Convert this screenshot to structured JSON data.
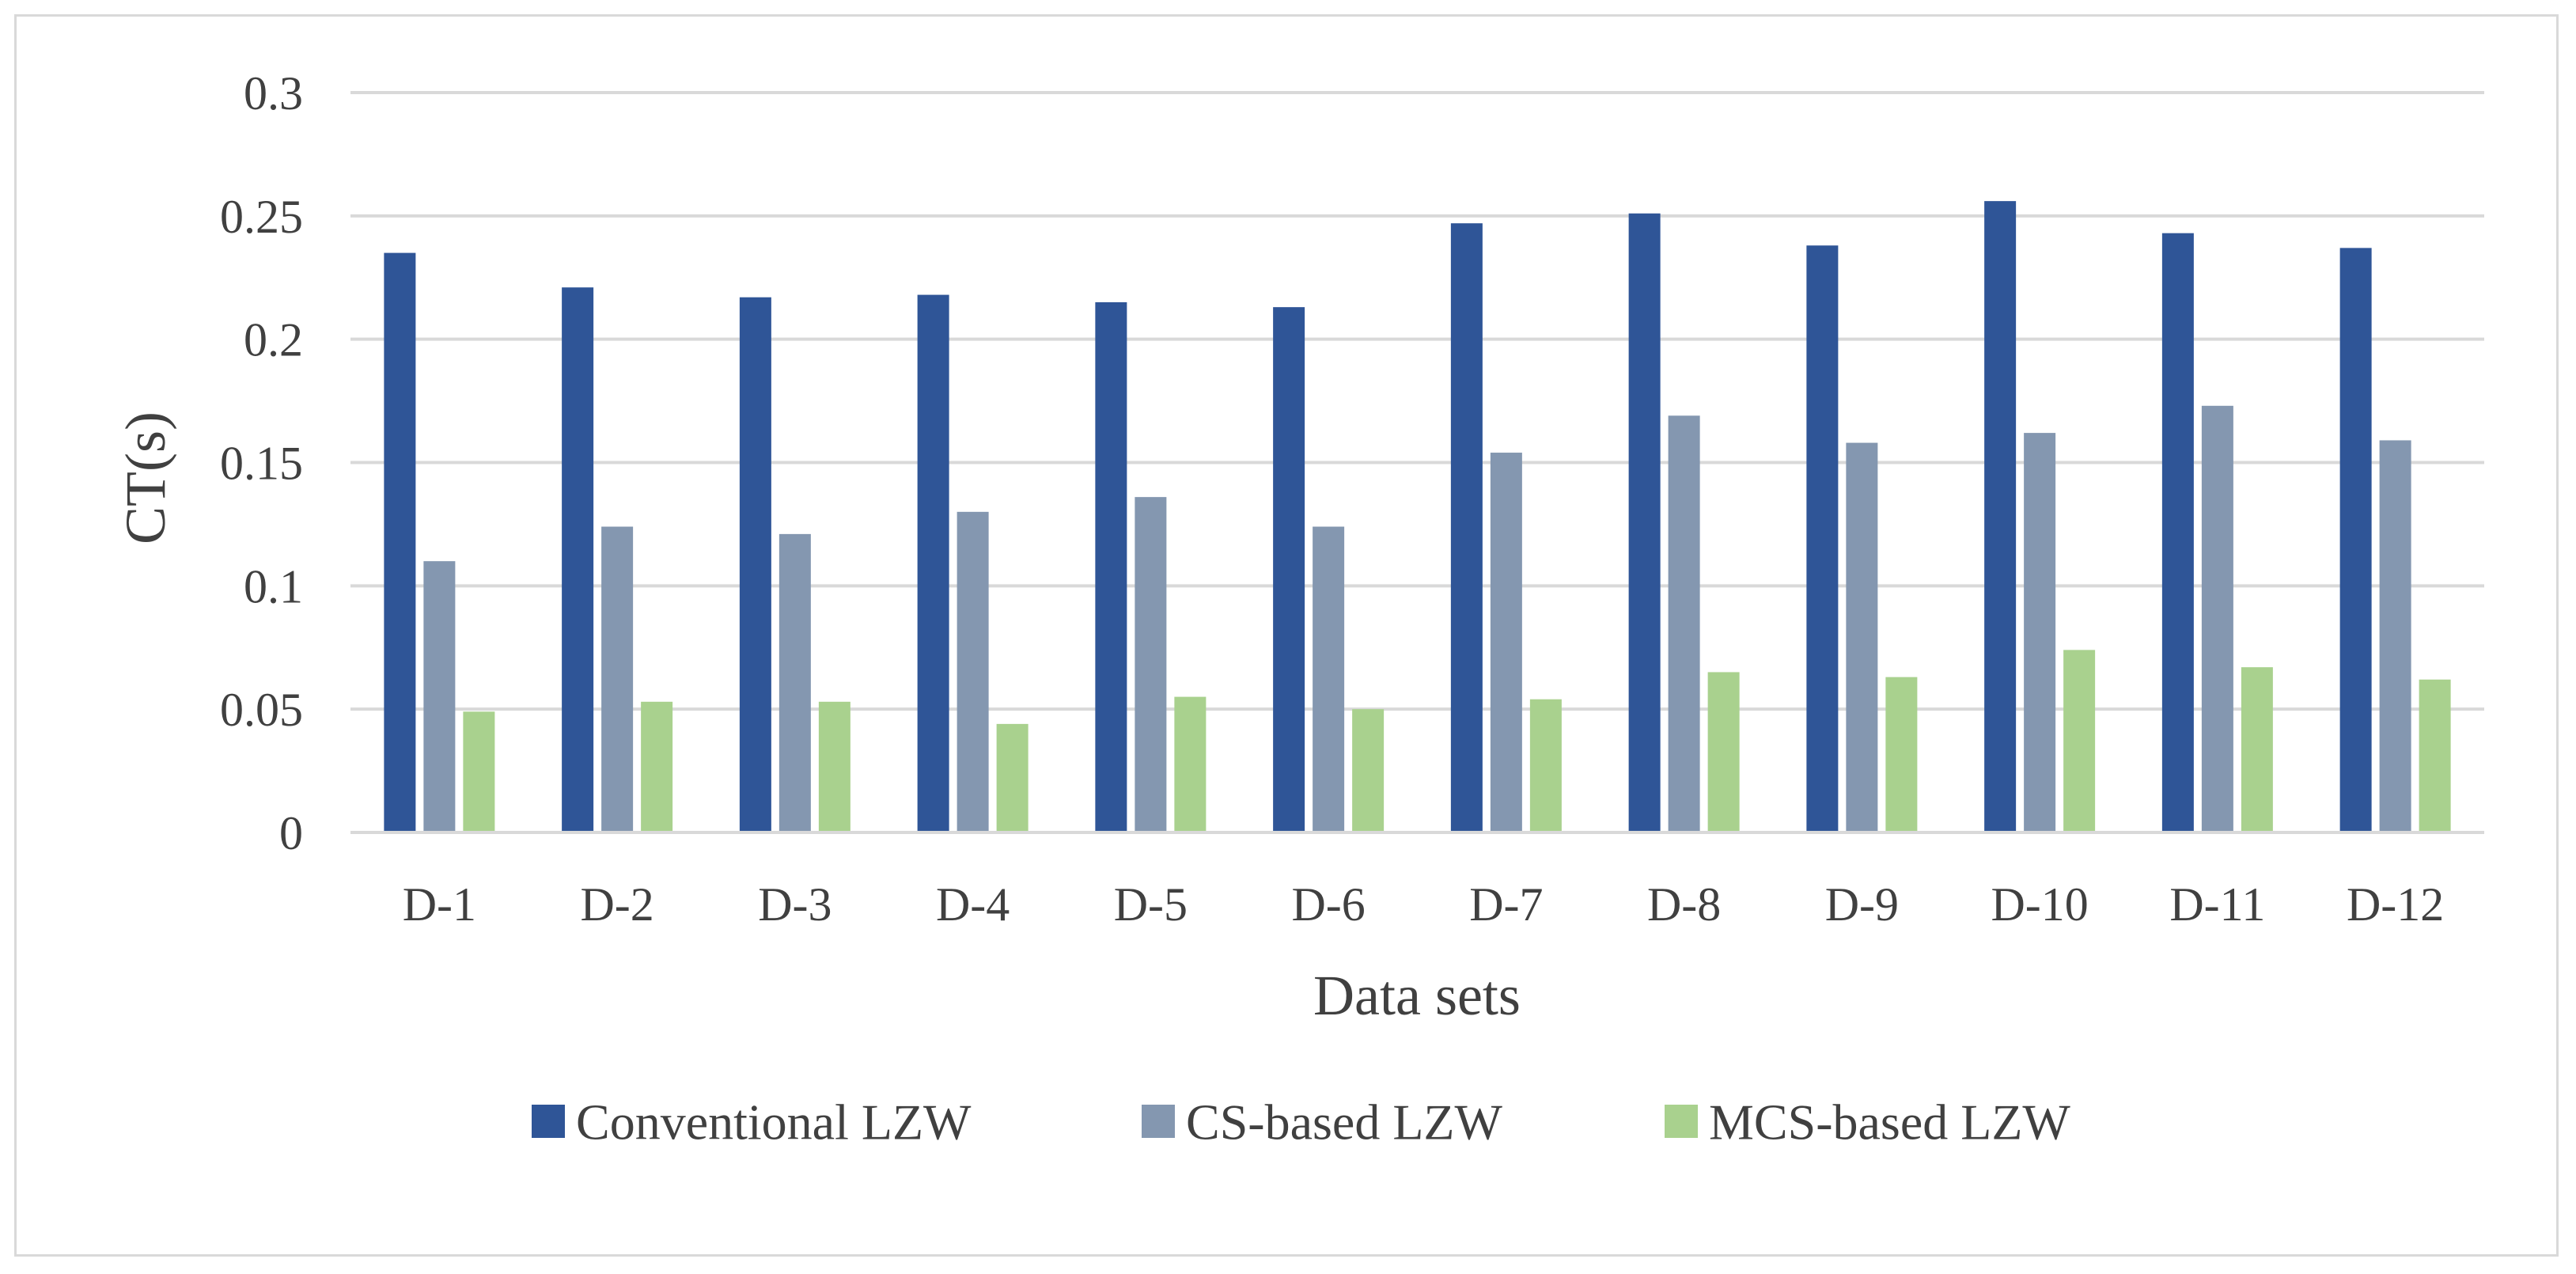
{
  "chart_data": {
    "type": "bar",
    "title": "",
    "xlabel": "Data sets",
    "ylabel": "CT(s)",
    "ylim": [
      0,
      0.3
    ],
    "yticks": [
      "0",
      "0.05",
      "0.1",
      "0.15",
      "0.2",
      "0.25",
      "0.3"
    ],
    "grid": true,
    "legend_position": "bottom",
    "categories": [
      "D-1",
      "D-2",
      "D-3",
      "D-4",
      "D-5",
      "D-6",
      "D-7",
      "D-8",
      "D-9",
      "D-10",
      "D-11",
      "D-12"
    ],
    "series": [
      {
        "name": "Conventional LZW",
        "color": "#2f5597",
        "values": [
          0.235,
          0.221,
          0.217,
          0.218,
          0.215,
          0.213,
          0.247,
          0.251,
          0.238,
          0.256,
          0.243,
          0.237
        ]
      },
      {
        "name": "CS-based LZW",
        "color": "#8497b0",
        "values": [
          0.11,
          0.124,
          0.121,
          0.13,
          0.136,
          0.124,
          0.154,
          0.169,
          0.158,
          0.162,
          0.173,
          0.159
        ]
      },
      {
        "name": "MCS-based LZW",
        "color": "#a9d18e",
        "values": [
          0.049,
          0.053,
          0.053,
          0.044,
          0.055,
          0.05,
          0.054,
          0.065,
          0.063,
          0.074,
          0.067,
          0.062
        ]
      }
    ]
  }
}
